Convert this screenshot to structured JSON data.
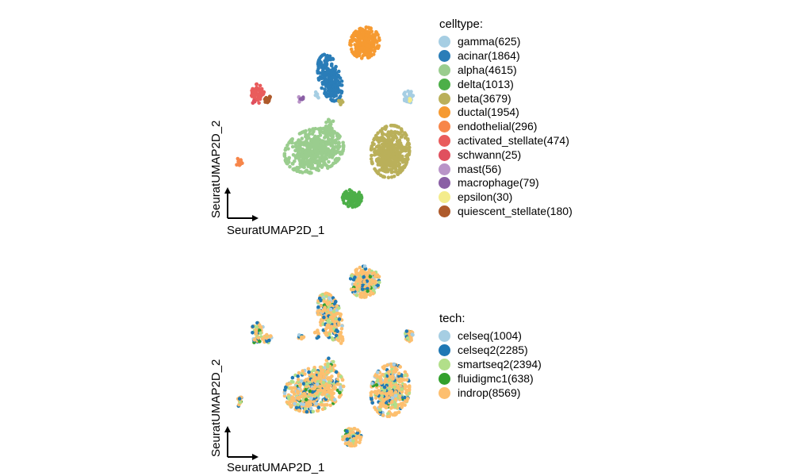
{
  "chart_data": [
    {
      "type": "scatter",
      "xlabel": "SeuratUMAP2D_1",
      "ylabel": "SeuratUMAP2D_2",
      "legend_title": "celltype:",
      "legend_placement": "right",
      "grid": false,
      "series": [
        {
          "name": "gamma(625)",
          "color": "#A6CEE3",
          "count": 625
        },
        {
          "name": "acinar(1864)",
          "color": "#2A7DB8",
          "count": 1864
        },
        {
          "name": "alpha(4615)",
          "color": "#9ACD8E",
          "count": 4615
        },
        {
          "name": "delta(1013)",
          "color": "#4CAF48",
          "count": 1013
        },
        {
          "name": "beta(3679)",
          "color": "#BAB05A",
          "count": 3679
        },
        {
          "name": "ductal(1954)",
          "color": "#F69A31",
          "count": 1954
        },
        {
          "name": "endothelial(296)",
          "color": "#F7864A",
          "count": 296
        },
        {
          "name": "activated_stellate(474)",
          "color": "#E95C5C",
          "count": 474
        },
        {
          "name": "schwann(25)",
          "color": "#E0505E",
          "count": 25
        },
        {
          "name": "mast(56)",
          "color": "#B994C8",
          "count": 56
        },
        {
          "name": "macrophage(79)",
          "color": "#8A5FA5",
          "count": 79
        },
        {
          "name": "epsilon(30)",
          "color": "#F4EC8C",
          "count": 30
        },
        {
          "name": "quiescent_stellate(180)",
          "color": "#AE5A2B",
          "count": 180
        }
      ]
    },
    {
      "type": "scatter",
      "xlabel": "SeuratUMAP2D_1",
      "ylabel": "SeuratUMAP2D_2",
      "legend_title": "tech:",
      "legend_placement": "right",
      "grid": false,
      "series": [
        {
          "name": "celseq(1004)",
          "color": "#A6CEE3",
          "count": 1004
        },
        {
          "name": "celseq2(2285)",
          "color": "#1F78B4",
          "count": 2285
        },
        {
          "name": "smartseq2(2394)",
          "color": "#B2DF8A",
          "count": 2394
        },
        {
          "name": "fluidigmc1(638)",
          "color": "#33A02C",
          "count": 638
        },
        {
          "name": "indrop(8569)",
          "color": "#FDBF6F",
          "count": 8569
        }
      ]
    }
  ]
}
